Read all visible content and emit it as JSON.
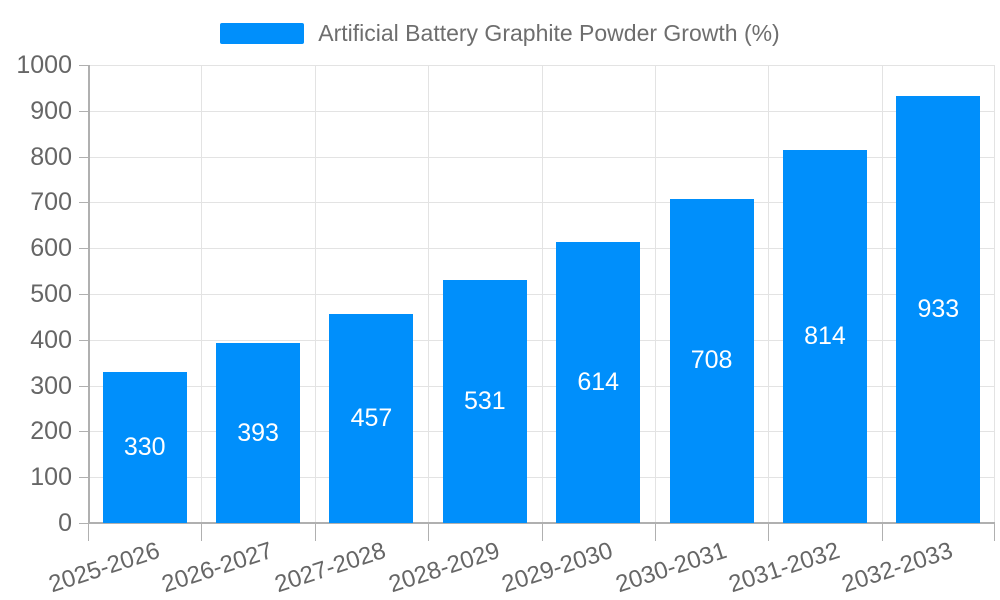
{
  "chart_data": {
    "type": "bar",
    "title": "Artificial Battery Graphite Powder Growth (%)",
    "series_name": "Artificial Battery Graphite Powder Growth (%)",
    "categories": [
      "2025-2026",
      "2026-2027",
      "2027-2028",
      "2028-2029",
      "2029-2030",
      "2030-2031",
      "2031-2032",
      "2032-2033"
    ],
    "values": [
      330,
      393,
      457,
      531,
      614,
      708,
      814,
      933
    ],
    "y_ticks": [
      0,
      100,
      200,
      300,
      400,
      500,
      600,
      700,
      800,
      900,
      1000
    ],
    "ylim": [
      0,
      1000
    ],
    "grid": true,
    "legend_position": "top",
    "value_labels_shown": true,
    "colors": {
      "bar": "#008FFB",
      "value_label": "#ffffff",
      "axis_label": "#666666",
      "grid_line": "#e3e3e3",
      "axis_line": "#b0b0b0"
    }
  }
}
